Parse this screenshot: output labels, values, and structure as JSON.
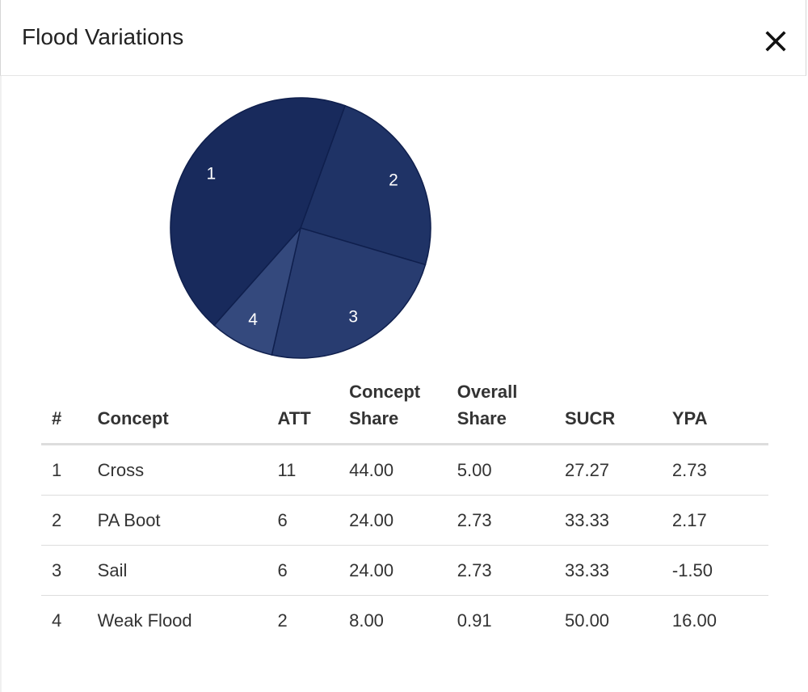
{
  "modal": {
    "title": "Flood Variations",
    "close_icon": "close-icon"
  },
  "chart_data": {
    "type": "pie",
    "labels": [
      "1",
      "2",
      "3",
      "4"
    ],
    "categories": [
      "Cross",
      "PA Boot",
      "Sail",
      "Weak Flood"
    ],
    "values": [
      44.0,
      24.0,
      24.0,
      8.0
    ],
    "colors": [
      "#182a5c",
      "#1f3366",
      "#283c70",
      "#34497d"
    ],
    "stroke": "#0f1f4d"
  },
  "table": {
    "headers": {
      "num": "#",
      "concept": "Concept",
      "att": "ATT",
      "concept_share_1": "Concept",
      "concept_share_2": "Share",
      "overall_share_1": "Overall",
      "overall_share_2": "Share",
      "sucr": "SUCR",
      "ypa": "YPA"
    },
    "rows": [
      {
        "num": "1",
        "concept": "Cross",
        "att": "11",
        "concept_share": "44.00",
        "overall_share": "5.00",
        "sucr": "27.27",
        "ypa": "2.73"
      },
      {
        "num": "2",
        "concept": "PA Boot",
        "att": "6",
        "concept_share": "24.00",
        "overall_share": "2.73",
        "sucr": "33.33",
        "ypa": "2.17"
      },
      {
        "num": "3",
        "concept": "Sail",
        "att": "6",
        "concept_share": "24.00",
        "overall_share": "2.73",
        "sucr": "33.33",
        "ypa": "-1.50"
      },
      {
        "num": "4",
        "concept": "Weak Flood",
        "att": "2",
        "concept_share": "8.00",
        "overall_share": "0.91",
        "sucr": "50.00",
        "ypa": "16.00"
      }
    ]
  }
}
